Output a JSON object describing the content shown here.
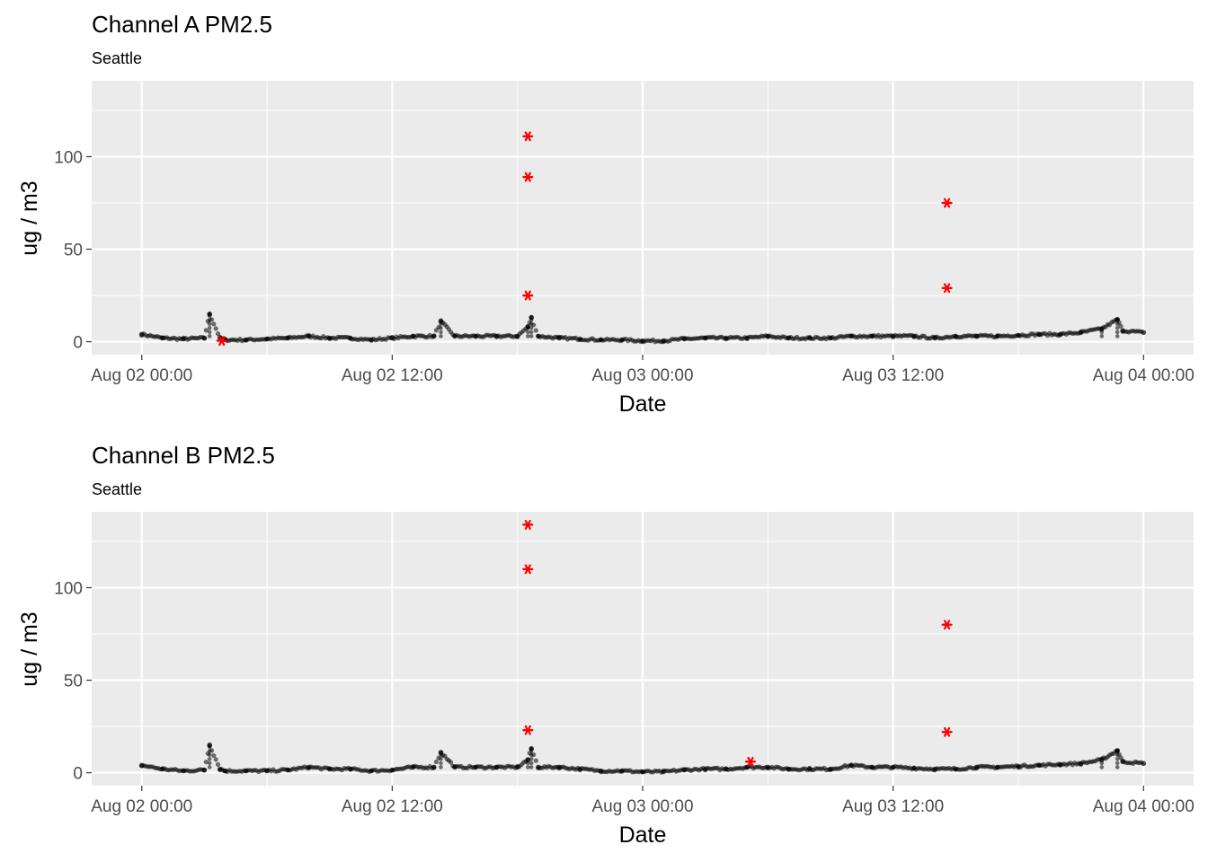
{
  "chart_data": [
    {
      "type": "scatter",
      "title": "Channel A PM2.5",
      "subtitle": "Seattle",
      "xlabel": "Date",
      "ylabel": "ug / m3",
      "x_ticks": [
        "Aug 02 00:00",
        "Aug 02 12:00",
        "Aug 03 00:00",
        "Aug 03 12:00",
        "Aug 04 00:00"
      ],
      "x_tick_hours": [
        0,
        12,
        24,
        36,
        48
      ],
      "xlim_hours": [
        -2.4,
        50.4
      ],
      "y_ticks": [
        "0",
        "50",
        "100"
      ],
      "ylim": [
        -7,
        141
      ],
      "grid": true,
      "series": [
        {
          "marker": "point",
          "color": "#000000",
          "x": [
            "2024-08-02 00:00",
            "2024-08-02 01:00",
            "2024-08-02 02:00",
            "2024-08-02 03:00",
            "2024-08-02 03:15",
            "2024-08-02 03:45",
            "2024-08-02 04:00",
            "2024-08-02 05:00",
            "2024-08-02 06:00",
            "2024-08-02 07:00",
            "2024-08-02 08:00",
            "2024-08-02 09:00",
            "2024-08-02 10:00",
            "2024-08-02 11:00",
            "2024-08-02 12:00",
            "2024-08-02 13:00",
            "2024-08-02 14:00",
            "2024-08-02 14:20",
            "2024-08-02 15:00",
            "2024-08-02 16:00",
            "2024-08-02 17:00",
            "2024-08-02 18:00",
            "2024-08-02 18:30",
            "2024-08-02 18:40",
            "2024-08-02 19:00",
            "2024-08-02 20:00",
            "2024-08-02 21:00",
            "2024-08-02 22:00",
            "2024-08-02 23:00",
            "2024-08-03 00:00",
            "2024-08-03 01:00",
            "2024-08-03 02:00",
            "2024-08-03 03:00",
            "2024-08-03 04:00",
            "2024-08-03 05:00",
            "2024-08-03 06:00",
            "2024-08-03 07:00",
            "2024-08-03 08:00",
            "2024-08-03 09:00",
            "2024-08-03 10:00",
            "2024-08-03 11:00",
            "2024-08-03 12:00",
            "2024-08-03 13:00",
            "2024-08-03 14:00",
            "2024-08-03 15:00",
            "2024-08-03 16:00",
            "2024-08-03 17:00",
            "2024-08-03 18:00",
            "2024-08-03 19:00",
            "2024-08-03 20:00",
            "2024-08-03 21:00",
            "2024-08-03 22:00",
            "2024-08-03 22:45",
            "2024-08-03 23:00",
            "2024-08-04 00:00"
          ],
          "y": [
            4,
            2,
            1.5,
            2,
            15,
            2,
            1,
            1,
            1.5,
            2,
            3,
            2,
            2,
            1,
            2,
            3,
            3,
            11,
            3,
            3,
            3,
            3,
            8,
            13,
            3,
            2,
            1.5,
            1,
            1,
            0.5,
            0.5,
            1.5,
            2,
            2,
            2,
            3,
            2,
            2,
            2,
            3,
            3,
            3,
            3,
            2,
            3,
            3,
            3,
            3.5,
            4,
            4,
            5,
            7,
            12,
            6,
            5
          ]
        },
        {
          "marker": "asterisk",
          "color": "#ff0000",
          "x": [
            "2024-08-02 03:50",
            "2024-08-02 18:30",
            "2024-08-02 18:30",
            "2024-08-02 18:30",
            "2024-08-03 14:35",
            "2024-08-03 14:35"
          ],
          "y": [
            0.5,
            111,
            89,
            25,
            75,
            29
          ]
        }
      ]
    },
    {
      "type": "scatter",
      "title": "Channel B PM2.5",
      "subtitle": "Seattle",
      "xlabel": "Date",
      "ylabel": "ug / m3",
      "x_ticks": [
        "Aug 02 00:00",
        "Aug 02 12:00",
        "Aug 03 00:00",
        "Aug 03 12:00",
        "Aug 04 00:00"
      ],
      "x_tick_hours": [
        0,
        12,
        24,
        36,
        48
      ],
      "xlim_hours": [
        -2.4,
        50.4
      ],
      "y_ticks": [
        "0",
        "50",
        "100"
      ],
      "ylim": [
        -7,
        141
      ],
      "grid": true,
      "series": [
        {
          "marker": "point",
          "color": "#000000",
          "x": [
            "2024-08-02 00:00",
            "2024-08-02 01:00",
            "2024-08-02 02:00",
            "2024-08-02 03:00",
            "2024-08-02 03:15",
            "2024-08-02 03:45",
            "2024-08-02 04:00",
            "2024-08-02 05:00",
            "2024-08-02 06:00",
            "2024-08-02 07:00",
            "2024-08-02 08:00",
            "2024-08-02 09:00",
            "2024-08-02 10:00",
            "2024-08-02 11:00",
            "2024-08-02 12:00",
            "2024-08-02 13:00",
            "2024-08-02 14:00",
            "2024-08-02 14:20",
            "2024-08-02 15:00",
            "2024-08-02 16:00",
            "2024-08-02 17:00",
            "2024-08-02 18:00",
            "2024-08-02 18:30",
            "2024-08-02 18:40",
            "2024-08-02 19:00",
            "2024-08-02 20:00",
            "2024-08-02 21:00",
            "2024-08-02 22:00",
            "2024-08-02 23:00",
            "2024-08-03 00:00",
            "2024-08-03 01:00",
            "2024-08-03 02:00",
            "2024-08-03 03:00",
            "2024-08-03 04:00",
            "2024-08-03 05:00",
            "2024-08-03 06:00",
            "2024-08-03 07:00",
            "2024-08-03 08:00",
            "2024-08-03 09:00",
            "2024-08-03 10:00",
            "2024-08-03 11:00",
            "2024-08-03 12:00",
            "2024-08-03 13:00",
            "2024-08-03 14:00",
            "2024-08-03 15:00",
            "2024-08-03 16:00",
            "2024-08-03 17:00",
            "2024-08-03 18:00",
            "2024-08-03 19:00",
            "2024-08-03 20:00",
            "2024-08-03 21:00",
            "2024-08-03 22:00",
            "2024-08-03 22:45",
            "2024-08-03 23:00",
            "2024-08-04 00:00"
          ],
          "y": [
            4,
            2,
            1,
            1.5,
            15,
            2,
            1,
            1,
            1,
            1.5,
            3,
            2,
            2,
            1,
            1.5,
            3,
            3,
            11,
            3,
            3,
            3,
            3,
            7,
            13,
            3,
            3,
            2,
            1,
            1,
            0.5,
            0.5,
            1.5,
            2,
            2,
            3,
            3,
            2,
            2,
            2,
            4,
            3,
            3,
            2.5,
            2,
            2,
            3,
            3,
            3.5,
            4,
            4.5,
            5,
            7,
            12,
            6,
            5
          ]
        },
        {
          "marker": "asterisk",
          "color": "#ff0000",
          "x": [
            "2024-08-02 18:30",
            "2024-08-02 18:30",
            "2024-08-02 18:30",
            "2024-08-03 05:10",
            "2024-08-03 14:35",
            "2024-08-03 14:35"
          ],
          "y": [
            134,
            110,
            23,
            6,
            80,
            22
          ]
        }
      ]
    }
  ]
}
